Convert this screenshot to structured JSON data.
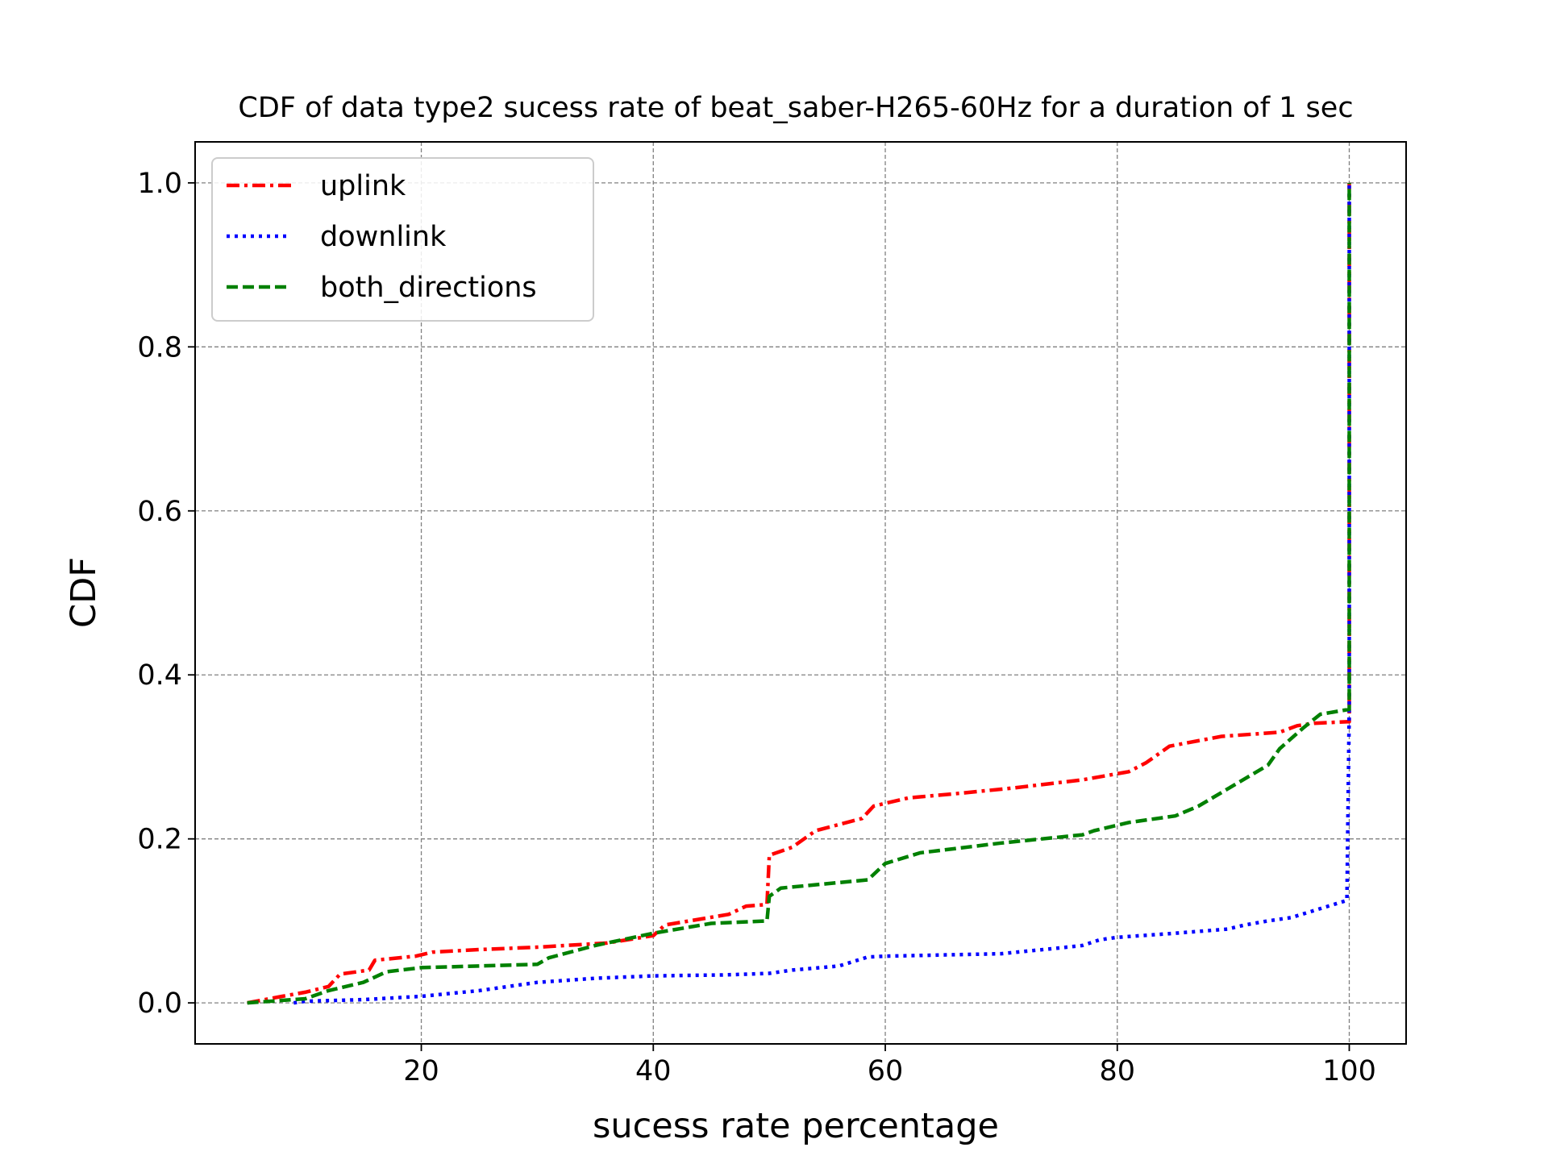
{
  "chart_data": {
    "type": "line",
    "title": "CDF of data type2 sucess rate of beat_saber-H265-60Hz for a duration of 1 sec",
    "xlabel": "sucess rate percentage",
    "ylabel": "CDF",
    "xlim": [
      0.5,
      104.9
    ],
    "ylim": [
      -0.05,
      1.05
    ],
    "xticks": [
      20,
      40,
      60,
      80,
      100
    ],
    "xtick_labels": [
      "20",
      "40",
      "60",
      "80",
      "100"
    ],
    "yticks": [
      0.0,
      0.2,
      0.4,
      0.6,
      0.8,
      1.0
    ],
    "ytick_labels": [
      "0.0",
      "0.2",
      "0.4",
      "0.6",
      "0.8",
      "1.0"
    ],
    "grid": true,
    "legend_position": "top-left",
    "series": [
      {
        "name": "uplink",
        "color": "#ff0000",
        "dash": "dashdot",
        "x": [
          5,
          8,
          10,
          12,
          13,
          15.5,
          16,
          19.5,
          21,
          25,
          30,
          36,
          40,
          41,
          46.5,
          48,
          49.8,
          50,
          52,
          54,
          58,
          59,
          62,
          66,
          71,
          77,
          81,
          82.5,
          84.5,
          89,
          94,
          95.5,
          97,
          100,
          100
        ],
        "y": [
          0,
          0.008,
          0.013,
          0.02,
          0.035,
          0.04,
          0.052,
          0.057,
          0.062,
          0.065,
          0.068,
          0.073,
          0.082,
          0.095,
          0.108,
          0.118,
          0.12,
          0.18,
          0.19,
          0.21,
          0.225,
          0.24,
          0.25,
          0.255,
          0.262,
          0.272,
          0.282,
          0.293,
          0.313,
          0.325,
          0.33,
          0.338,
          0.341,
          0.343,
          1.0
        ]
      },
      {
        "name": "downlink",
        "color": "#0000ff",
        "dash": "dotted",
        "x": [
          9,
          10,
          15,
          20,
          25,
          30,
          35,
          40,
          46,
          50,
          52,
          56,
          58.5,
          60,
          70,
          75,
          77,
          78.5,
          80,
          85,
          89.5,
          91,
          93,
          95,
          99.8,
          100,
          100
        ],
        "y": [
          0,
          0.002,
          0.004,
          0.008,
          0.015,
          0.025,
          0.03,
          0.033,
          0.034,
          0.036,
          0.04,
          0.045,
          0.056,
          0.057,
          0.06,
          0.067,
          0.07,
          0.077,
          0.08,
          0.085,
          0.09,
          0.095,
          0.1,
          0.104,
          0.125,
          0.36,
          1.0
        ]
      },
      {
        "name": "both_directions",
        "color": "#008000",
        "dash": "dashed",
        "x": [
          5,
          10,
          12,
          15,
          17,
          20,
          30,
          31,
          35,
          40,
          45,
          49.8,
          50,
          51,
          58.5,
          60,
          63,
          70,
          77,
          78,
          81,
          85,
          87,
          90,
          93,
          94,
          96,
          97.5,
          100,
          100
        ],
        "y": [
          0,
          0.005,
          0.015,
          0.025,
          0.038,
          0.043,
          0.047,
          0.055,
          0.07,
          0.085,
          0.097,
          0.1,
          0.13,
          0.14,
          0.15,
          0.17,
          0.183,
          0.195,
          0.205,
          0.21,
          0.22,
          0.228,
          0.24,
          0.265,
          0.29,
          0.31,
          0.335,
          0.352,
          0.358,
          1.0
        ]
      }
    ]
  }
}
